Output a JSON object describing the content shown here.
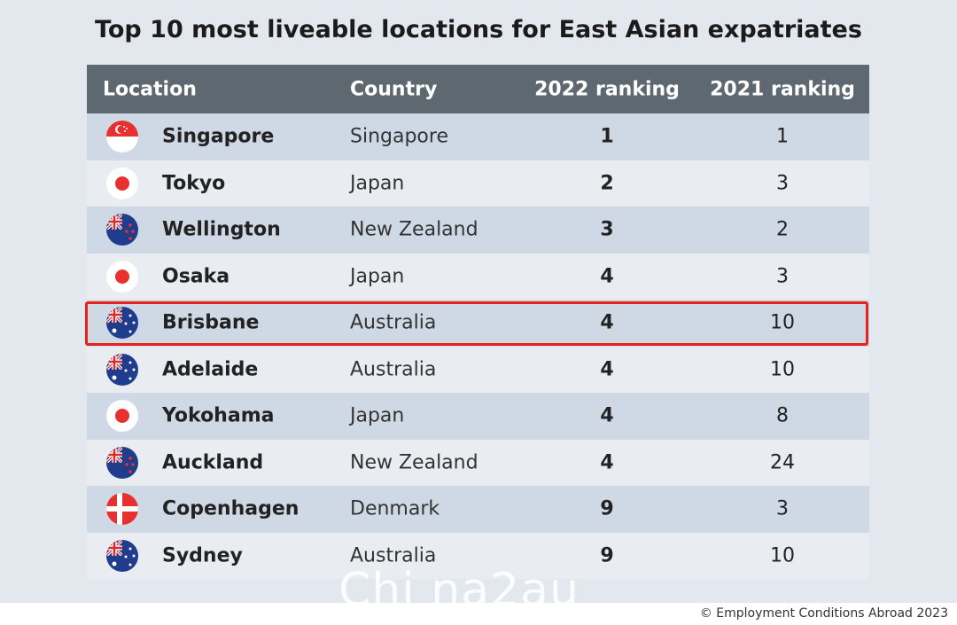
{
  "title": "Top 10 most liveable locations for East Asian expatriates",
  "table": {
    "header": [
      "Location",
      "Country",
      "2022 ranking",
      "2021 ranking"
    ],
    "rows": [
      [
        "Singapore",
        "Singapore",
        1,
        1
      ],
      [
        "Tokyo",
        "Japan",
        2,
        3
      ],
      [
        "Wellington",
        "New Zealand",
        3,
        2
      ],
      [
        "Osaka",
        "Japan",
        4,
        3
      ],
      [
        "Brisbane",
        "Australia",
        4,
        10
      ],
      [
        "Adelaide",
        "Australia",
        4,
        10
      ],
      [
        "Yokohama",
        "Japan",
        4,
        8
      ],
      [
        "Auckland",
        "New Zealand",
        4,
        24
      ],
      [
        "Copenhagen",
        "Denmark",
        9,
        3
      ],
      [
        "Sydney",
        "Australia",
        9,
        10
      ]
    ]
  },
  "watermark": "Chi na2au",
  "footer": "© Employment Conditions Abroad 2023"
}
